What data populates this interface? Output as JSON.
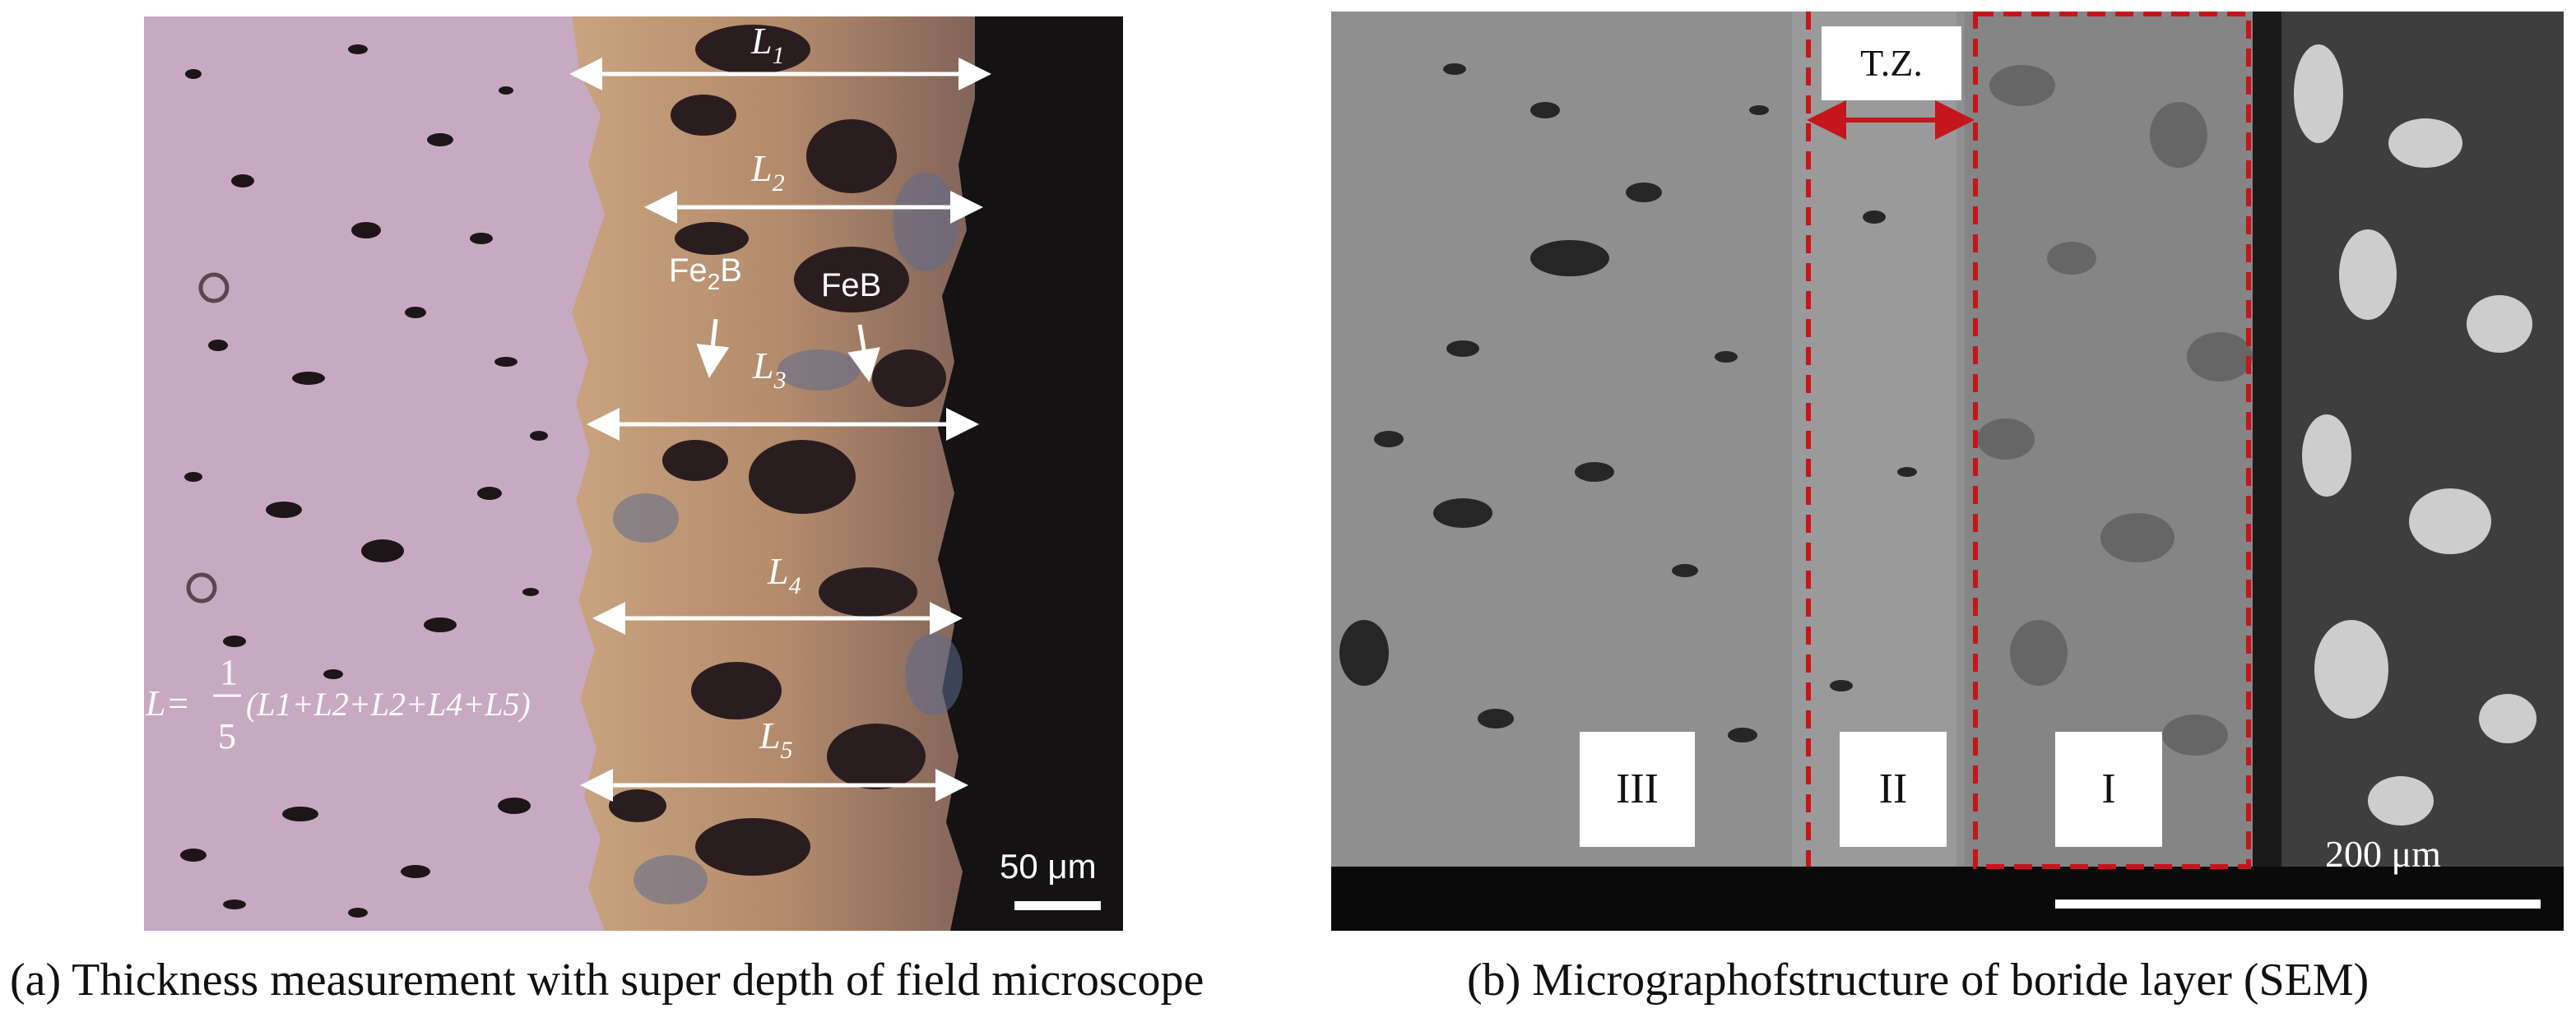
{
  "panel_a": {
    "labels": {
      "l1": "L",
      "l1_sub": "1",
      "l2": "L",
      "l2_sub": "2",
      "l3": "L",
      "l3_sub": "3",
      "l4": "L",
      "l4_sub": "4",
      "l5": "L",
      "l5_sub": "5",
      "fe2b_main": "Fe",
      "fe2b_sub": "2",
      "fe2b_tail": "B",
      "feb": "FeB",
      "formula_lhs": "L=",
      "formula_num": "1",
      "formula_den": "5",
      "formula_rhs": "(L1+L2+L2+L4+L5)",
      "scale_bar": "50 μm"
    },
    "colors": {
      "matrix": "#c6a7c0",
      "layer": "#b79578",
      "surface": "#161314",
      "arrow": "#ffffff"
    }
  },
  "panel_b": {
    "labels": {
      "tz": "T.Z.",
      "region_1": "I",
      "region_2": "II",
      "region_3": "III",
      "scale_bar": "200 μm"
    },
    "colors": {
      "matrix": "#8e8e8e",
      "dashed_line": "#c4161c",
      "bottom_bar": "#0a0a0a"
    }
  },
  "captions": {
    "a": "(a) Thickness measurement with super depth of field microscope",
    "b": "(b) Micrographofstructure of boride layer (SEM)"
  }
}
